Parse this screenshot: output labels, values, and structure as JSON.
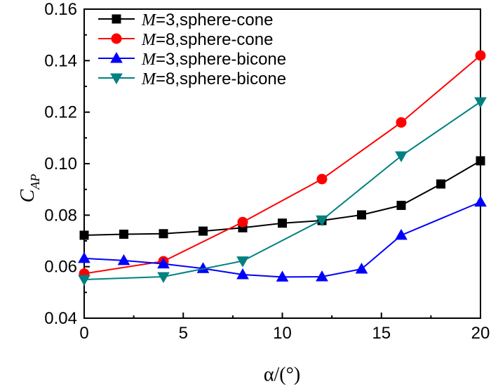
{
  "chart_data": {
    "type": "line",
    "xlabel": "α/(°)",
    "ylabel": "C",
    "ylabel_sub": "AP",
    "xlim": [
      0,
      20
    ],
    "ylim": [
      0.04,
      0.16
    ],
    "xticks": [
      0,
      5,
      10,
      15,
      20
    ],
    "yticks": [
      0.04,
      0.06,
      0.08,
      0.1,
      0.12,
      0.14,
      0.16
    ],
    "ytick_labels": [
      "0.04",
      "0.06",
      "0.08",
      "0.10",
      "0.12",
      "0.14",
      "0.16"
    ],
    "xtick_labels": [
      "0",
      "5",
      "10",
      "15",
      "20"
    ],
    "grid": false,
    "legend_position": "top-left",
    "series": [
      {
        "name_var": "M",
        "name_rest": "=3,sphere-cone",
        "color": "#000000",
        "marker": "square",
        "x": [
          0,
          2,
          4,
          6,
          8,
          10,
          12,
          14,
          16,
          18,
          20
        ],
        "y": [
          0.0722,
          0.0726,
          0.0728,
          0.0738,
          0.0751,
          0.0769,
          0.0779,
          0.0801,
          0.0838,
          0.0921,
          0.1011
        ]
      },
      {
        "name_var": "M",
        "name_rest": "=8,sphere-cone",
        "color": "#ff0000",
        "marker": "circle",
        "x": [
          0,
          4,
          8,
          12,
          16,
          20
        ],
        "y": [
          0.0573,
          0.0621,
          0.0773,
          0.094,
          0.116,
          0.142
        ]
      },
      {
        "name_var": "M",
        "name_rest": "=3,sphere-bicone",
        "color": "#0000ff",
        "marker": "triangle-up",
        "x": [
          0,
          2,
          4,
          6,
          8,
          10,
          12,
          14,
          16,
          20
        ],
        "y": [
          0.0632,
          0.0624,
          0.0611,
          0.0593,
          0.0569,
          0.056,
          0.0561,
          0.0591,
          0.0722,
          0.0851
        ]
      },
      {
        "name_var": "M",
        "name_rest": "=8,sphere-bicone",
        "color": "#008080",
        "marker": "triangle-down",
        "x": [
          0,
          4,
          8,
          12,
          16,
          20
        ],
        "y": [
          0.055,
          0.0561,
          0.0622,
          0.0781,
          0.103,
          0.124
        ]
      }
    ]
  }
}
